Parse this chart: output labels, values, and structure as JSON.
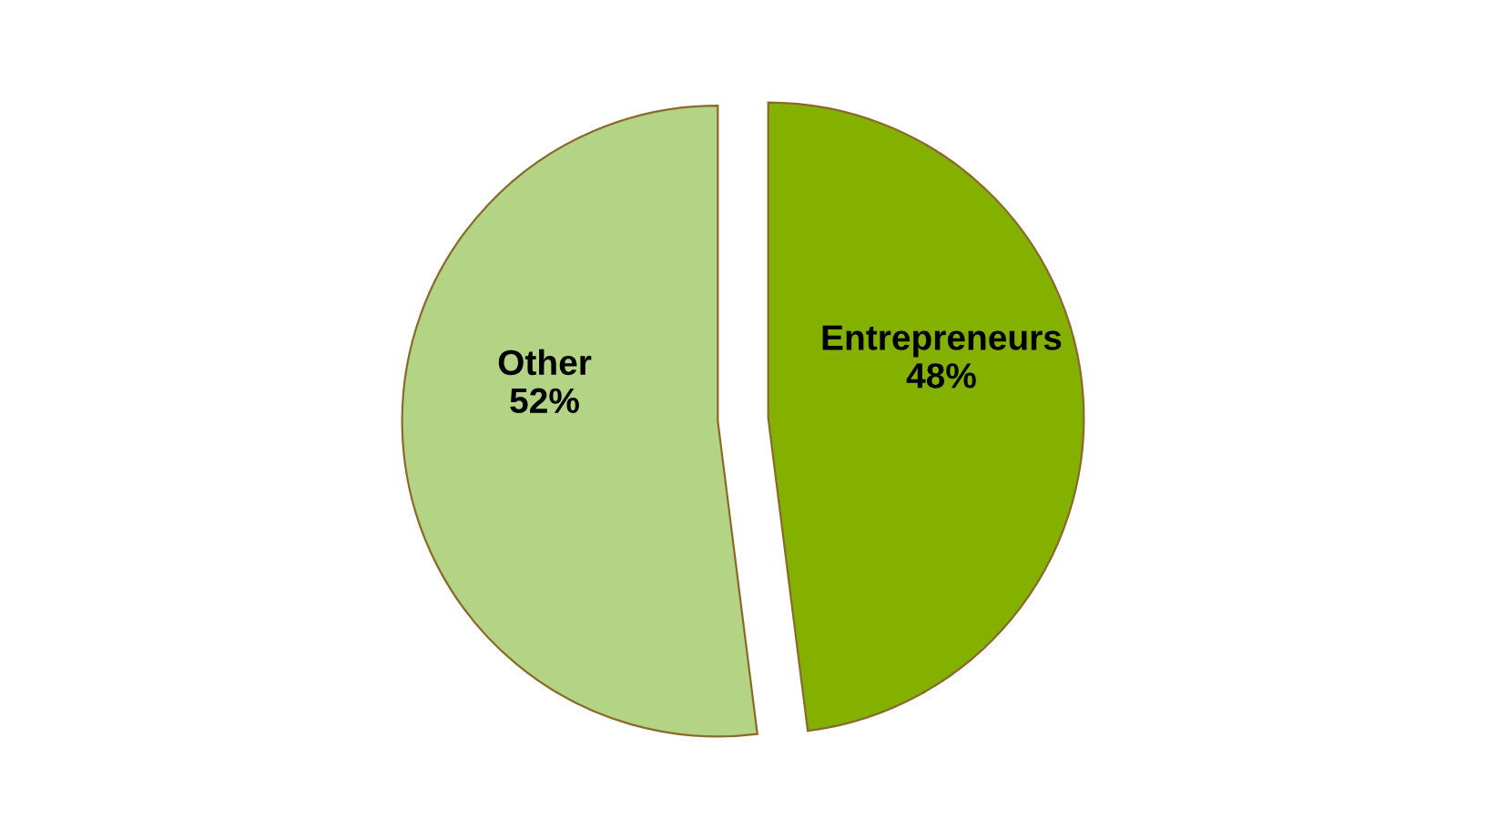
{
  "chart_data": {
    "type": "pie",
    "categories": [
      "Entrepreneurs",
      "Other"
    ],
    "values": [
      48,
      52
    ],
    "colors": [
      "#84b000",
      "#b3d385"
    ],
    "value_labels": [
      "48%",
      "52%"
    ],
    "legend": false
  }
}
